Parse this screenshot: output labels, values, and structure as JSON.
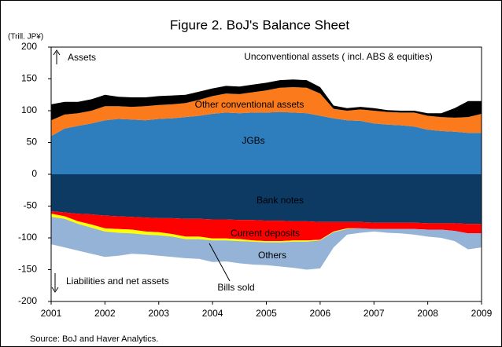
{
  "chart_data": {
    "type": "stacked_area",
    "title": "Figure 2. BoJ's Balance Sheet",
    "unit_label": "(Trill. JP¥)",
    "annotations": {
      "assets": "Assets",
      "liabilities": "Liabilities and net assets"
    },
    "source": "Source: BoJ and Haver Analytics.",
    "x": [
      2001,
      2001.25,
      2001.5,
      2001.75,
      2002,
      2002.25,
      2002.5,
      2002.75,
      2003,
      2003.25,
      2003.5,
      2003.75,
      2004,
      2004.25,
      2004.5,
      2004.75,
      2005,
      2005.25,
      2005.5,
      2005.75,
      2006,
      2006.25,
      2006.5,
      2006.75,
      2007,
      2007.25,
      2007.5,
      2007.75,
      2008,
      2008.25,
      2008.5,
      2008.75,
      2009
    ],
    "series": [
      {
        "name": "JGBs",
        "color": "#2e7dbd",
        "values": [
          60,
          72,
          76,
          80,
          85,
          87,
          86,
          85,
          87,
          88,
          90,
          92,
          95,
          97,
          96,
          97,
          97,
          98,
          97,
          96,
          92,
          88,
          85,
          84,
          80,
          78,
          77,
          75,
          70,
          68,
          67,
          65,
          65
        ]
      },
      {
        "name": "Other conventional assets",
        "color": "#fa7a1c",
        "values": [
          25,
          22,
          20,
          20,
          22,
          20,
          20,
          22,
          22,
          22,
          22,
          25,
          28,
          30,
          30,
          32,
          35,
          38,
          40,
          40,
          35,
          15,
          15,
          18,
          20,
          20,
          20,
          22,
          22,
          22,
          22,
          25,
          30
        ]
      },
      {
        "name": "Unconventional assets ( incl. ABS & equities)",
        "color": "#000000",
        "values": [
          25,
          20,
          18,
          18,
          18,
          15,
          15,
          14,
          14,
          14,
          13,
          13,
          12,
          12,
          12,
          12,
          12,
          12,
          12,
          12,
          10,
          5,
          4,
          4,
          4,
          3,
          3,
          3,
          4,
          6,
          15,
          25,
          20
        ]
      },
      {
        "name": "Bank notes",
        "color": "#0c3a63",
        "values": [
          -58,
          -60,
          -62,
          -63,
          -65,
          -66,
          -67,
          -68,
          -69,
          -69,
          -70,
          -70,
          -71,
          -71,
          -72,
          -72,
          -73,
          -73,
          -74,
          -74,
          -75,
          -75,
          -75,
          -75,
          -76,
          -76,
          -76,
          -76,
          -77,
          -77,
          -77,
          -78,
          -78
        ]
      },
      {
        "name": "Current deposits",
        "color": "#ff0000",
        "values": [
          -4,
          -6,
          -12,
          -16,
          -20,
          -20,
          -20,
          -22,
          -22,
          -25,
          -28,
          -28,
          -30,
          -30,
          -30,
          -32,
          -32,
          -32,
          -30,
          -30,
          -28,
          -15,
          -10,
          -10,
          -10,
          -10,
          -10,
          -10,
          -10,
          -10,
          -12,
          -15,
          -15
        ]
      },
      {
        "name": "Bills sold",
        "color": "#ffff00",
        "values": [
          -5,
          -4,
          -4,
          -5,
          -5,
          -6,
          -6,
          -5,
          -5,
          -4,
          -4,
          -4,
          -3,
          -3,
          -3,
          -2,
          -2,
          -2,
          -2,
          -2,
          -1,
          -1,
          -1,
          0,
          0,
          0,
          0,
          0,
          0,
          0,
          0,
          0,
          0
        ]
      },
      {
        "name": "Others",
        "color": "#95b3d7",
        "values": [
          -43,
          -45,
          -42,
          -41,
          -40,
          -36,
          -32,
          -31,
          -32,
          -32,
          -30,
          -31,
          -34,
          -33,
          -35,
          -36,
          -36,
          -38,
          -41,
          -44,
          -44,
          -24,
          -9,
          -7,
          -4,
          -6,
          -7,
          -9,
          -11,
          -13,
          -16,
          -25,
          -22
        ]
      }
    ],
    "xlim": [
      2001,
      2009
    ],
    "xticks": [
      2001,
      2002,
      2003,
      2004,
      2005,
      2006,
      2007,
      2008,
      2009
    ],
    "ylim": [
      -200,
      200
    ],
    "yticks": [
      -200,
      -150,
      -100,
      -50,
      0,
      50,
      100,
      150,
      200
    ],
    "grid": false
  }
}
